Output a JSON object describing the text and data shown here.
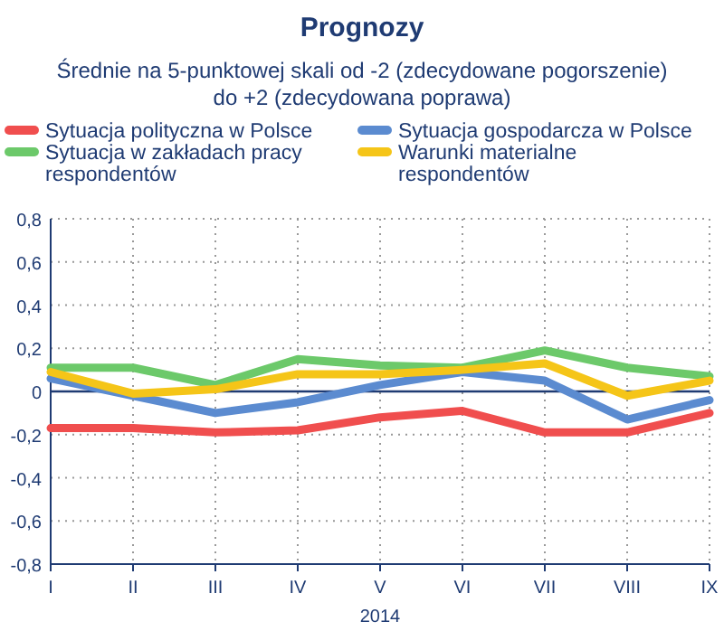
{
  "chart_data": {
    "type": "line",
    "title": "Prognozy",
    "subtitle": "Średnie na 5-punktowej skali od -2 (zdecydowane pogorszenie) do +2 (zdecydowana poprawa)",
    "xlabel": "2014",
    "categories": [
      "I",
      "II",
      "III",
      "IV",
      "V",
      "VI",
      "VII",
      "VIII",
      "IX"
    ],
    "series": [
      {
        "name": "Sytuacja polityczna w Polsce",
        "color": "#f04e4e",
        "values": [
          -0.17,
          -0.17,
          -0.19,
          -0.18,
          -0.12,
          -0.09,
          -0.19,
          -0.19,
          -0.1
        ]
      },
      {
        "name": "Sytuacja gospodarcza w Polsce",
        "color": "#5b8bd0",
        "values": [
          0.06,
          -0.02,
          -0.1,
          -0.05,
          0.03,
          0.09,
          0.05,
          -0.13,
          -0.04
        ]
      },
      {
        "name": "Sytuacja w zakładach pracy respondentów",
        "color": "#6cc96a",
        "values": [
          0.11,
          0.11,
          0.03,
          0.15,
          0.12,
          0.11,
          0.19,
          0.11,
          0.07
        ]
      },
      {
        "name": "Warunki materialne respondentów",
        "color": "#f5c518",
        "values": [
          0.09,
          -0.01,
          0.01,
          0.08,
          0.08,
          0.1,
          0.13,
          -0.02,
          0.05
        ]
      }
    ],
    "ylim": [
      -0.8,
      0.8
    ],
    "yticks": [
      {
        "value": -0.8,
        "label": "-0,8"
      },
      {
        "value": -0.6,
        "label": "-0,6"
      },
      {
        "value": -0.4,
        "label": "-0,4"
      },
      {
        "value": -0.2,
        "label": "-0,2"
      },
      0,
      {
        "value": 0.2,
        "label": "0,2"
      },
      {
        "value": 0.4,
        "label": "0,4"
      },
      {
        "value": 0.6,
        "label": "0,6"
      },
      {
        "value": 0.8,
        "label": "0,8"
      }
    ],
    "ref_lines": [
      {
        "axis": "y",
        "value": 0,
        "color": "#1f3b73"
      }
    ],
    "grid": true,
    "legend": "top",
    "marker": "none",
    "line_style": "solid"
  }
}
